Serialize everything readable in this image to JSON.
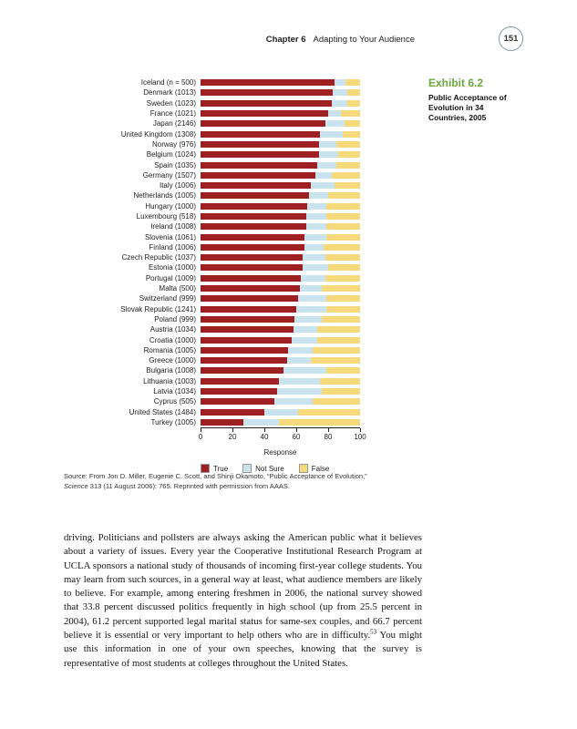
{
  "page": {
    "header": {
      "chapter": "Chapter 6",
      "title": "Adapting to Your Audience",
      "page_number": "151"
    },
    "exhibit": {
      "label": "Exhibit 6.2",
      "title": "Public Acceptance of Evolution in 34 Countries, 2005"
    },
    "axis": {
      "label": "Response"
    },
    "source": {
      "part1": "Source: From Jon D. Miller, Eugenie C. Scott, and Shinji Okamoto, “Public Acceptance of Evolution,” ",
      "italic": "Science",
      "part2": " 313 (11 August 2006): 765. Reprinted with permission from AAAS."
    },
    "body": {
      "part1": "driving. Politicians and pollsters are always asking the American public what it believes about a variety of issues. Every year the Cooperative Institutional Research Program at UCLA sponsors a national study of thousands of incoming first-year college students. You may learn from such sources, in a general way at least, what audience members are likely to believe. For example, among entering freshmen in 2006, the national survey showed that 33.8 percent discussed politics frequently in high school (up from 25.5 percent in 2004), 61.2 percent supported legal marital status for same-sex couples, and 66.7 percent believe it is essential or very important to help others who are in difficulty.",
      "footnote": "53",
      "part2": " You might use this information in one of your own speeches, knowing that the survey is representative of most students at colleges throughout the United States."
    }
  },
  "chart_data": {
    "type": "bar",
    "stacked": true,
    "orientation": "horizontal",
    "title": "Public Acceptance of Evolution in 34 Countries, 2005",
    "xlabel": "Response",
    "xlim": [
      0,
      100
    ],
    "xticks": [
      0,
      20,
      40,
      60,
      80,
      100
    ],
    "legend_position": "bottom",
    "categories": [
      "Iceland (n = 500)",
      "Denmark (1013)",
      "Sweden (1023)",
      "France (1021)",
      "Japan (2146)",
      "United Kingdom (1308)",
      "Norway (976)",
      "Belgium (1024)",
      "Spain (1035)",
      "Germany (1507)",
      "Italy (1006)",
      "Netherlands (1005)",
      "Hungary (1000)",
      "Luxembourg (518)",
      "Ireland (1008)",
      "Slovenia (1061)",
      "Finland (1006)",
      "Czech Republic (1037)",
      "Estonia (1000)",
      "Portugal (1009)",
      "Malta (500)",
      "Switzerland (999)",
      "Slovak Republic (1241)",
      "Poland (999)",
      "Austria (1034)",
      "Croatia (1000)",
      "Romania (1005)",
      "Greece (1000)",
      "Bulgaria (1008)",
      "Lithuania (1003)",
      "Latvia (1034)",
      "Cyprus (505)",
      "United States (1484)",
      "Turkey (1005)"
    ],
    "series": [
      {
        "name": "True",
        "color": "#9e2022",
        "values": [
          84,
          83,
          82,
          80,
          78,
          75,
          74,
          74,
          73,
          72,
          69,
          68,
          67,
          66,
          66,
          65,
          65,
          64,
          64,
          63,
          62,
          61,
          60,
          59,
          58,
          57,
          55,
          54,
          52,
          49,
          48,
          46,
          40,
          27
        ]
      },
      {
        "name": "Not Sure",
        "color": "#c9e4ee",
        "values": [
          7,
          9,
          10,
          8,
          12,
          14,
          11,
          12,
          12,
          10,
          15,
          12,
          12,
          13,
          13,
          14,
          12,
          14,
          16,
          15,
          14,
          18,
          19,
          17,
          15,
          16,
          15,
          15,
          27,
          26,
          28,
          24,
          21,
          22
        ]
      },
      {
        "name": "False",
        "color": "#f5d97b",
        "values": [
          9,
          8,
          8,
          12,
          10,
          11,
          15,
          14,
          15,
          18,
          16,
          20,
          21,
          21,
          21,
          21,
          23,
          22,
          20,
          22,
          24,
          21,
          21,
          24,
          27,
          27,
          30,
          31,
          21,
          25,
          24,
          30,
          39,
          51
        ]
      }
    ]
  }
}
